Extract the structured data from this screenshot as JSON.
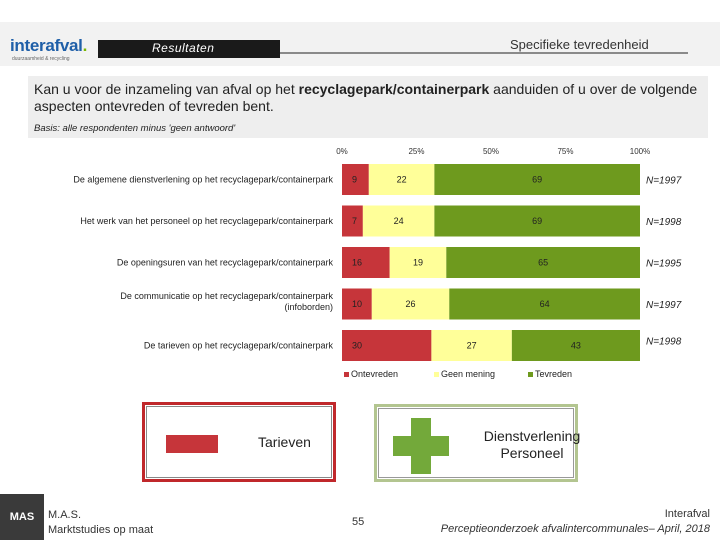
{
  "header": {
    "logo": {
      "text_main": "interafval",
      "text_dot": ".",
      "tagline": "duurzaamheid & recycling"
    },
    "section_label": "Resultaten",
    "slide_title": "Specifieke tevredenheid"
  },
  "question": {
    "part1": "Kan u voor de inzameling van afval op het ",
    "emphasis": "recyclagepark/containerpark",
    "part2": " aanduiden of u over de volgende aspecten ontevreden of tevreden bent.",
    "basis": "Basis: alle respondenten minus 'geen antwoord'"
  },
  "chart_data": {
    "type": "bar",
    "orientation": "horizontal",
    "stacked": true,
    "xlim": [
      0,
      100
    ],
    "x_ticks": [
      "0%",
      "25%",
      "50%",
      "75%",
      "100%"
    ],
    "categories": [
      [
        "De algemene dienstverlening op het recyclagepark/containerpark"
      ],
      [
        "Het werk van het personeel op het recyclagepark/containerpark"
      ],
      [
        "De openingsuren van het recyclagepark/containerpark"
      ],
      [
        "De communicatie op het recyclagepark/containerpark",
        "(infoborden)"
      ],
      [
        "De tarieven op het recyclagepark/containerpark"
      ]
    ],
    "series": [
      {
        "name": "Ontevreden",
        "color": "#c6353a",
        "values": [
          9,
          7,
          16,
          10,
          30
        ]
      },
      {
        "name": "Geen mening",
        "color": "#ffff99",
        "values": [
          22,
          24,
          19,
          26,
          27
        ]
      },
      {
        "name": "Tevreden",
        "color": "#6e9a1e",
        "values": [
          69,
          69,
          65,
          64,
          43
        ]
      }
    ],
    "n_labels": [
      "N=1997",
      "N=1998",
      "N=1995",
      "N=1997",
      "N=1998"
    ],
    "legend_position": "bottom"
  },
  "legend_panels": {
    "negative": {
      "label": "Tarieven",
      "color": "#c6353a"
    },
    "positive": {
      "label_line1": "Dienstverlening",
      "label_line2": "Personeel",
      "color": "#73a93a"
    }
  },
  "footer": {
    "mas_mark": "MAS",
    "mas_line1": "M.A.S.",
    "mas_line2": "Marktstudies op maat",
    "page_number": "55",
    "org": "Interafval",
    "report": "Perceptieonderzoek afvalintercommunales– April, 2018"
  }
}
